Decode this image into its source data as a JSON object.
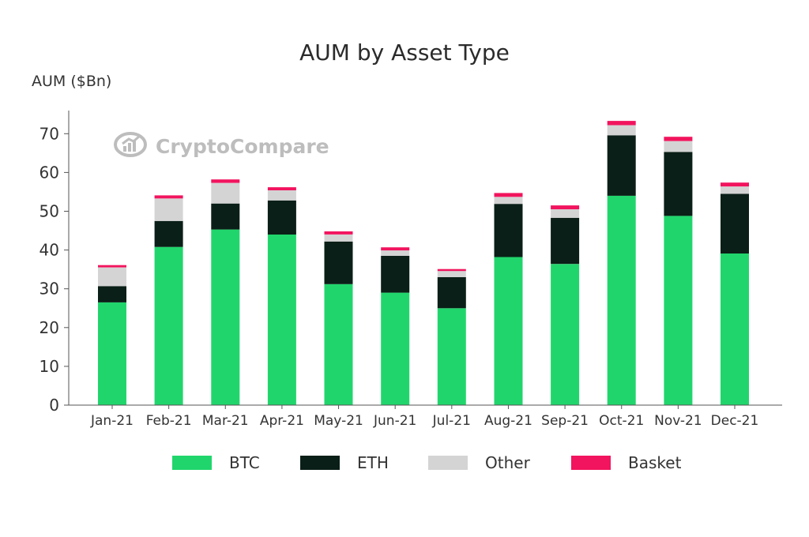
{
  "chart_data": {
    "type": "bar",
    "stacked": true,
    "title": "AUM by Asset Type",
    "ylabel": "AUM ($Bn)",
    "xlabel": "",
    "ylim": [
      0,
      75
    ],
    "yticks": [
      "0",
      "10",
      "20",
      "30",
      "40",
      "50",
      "60",
      "70"
    ],
    "categories": [
      "Jan-21",
      "Feb-21",
      "Mar-21",
      "Apr-21",
      "May-21",
      "Jun-21",
      "Jul-21",
      "Aug-21",
      "Sep-21",
      "Oct-21",
      "Nov-21",
      "Dec-21"
    ],
    "series": [
      {
        "name": "BTC",
        "color": "#20d66c",
        "values": [
          26.5,
          40.8,
          45.3,
          44.0,
          31.2,
          29.0,
          25.0,
          38.2,
          36.4,
          54.0,
          48.8,
          39.1
        ]
      },
      {
        "name": "ETH",
        "color": "#0a1f17",
        "values": [
          4.2,
          6.7,
          6.7,
          8.8,
          11.0,
          9.5,
          8.0,
          13.7,
          11.9,
          15.6,
          16.5,
          15.4
        ]
      },
      {
        "name": "Other",
        "color": "#d4d4d4",
        "values": [
          4.8,
          5.8,
          5.3,
          2.6,
          1.8,
          1.4,
          1.6,
          1.8,
          2.2,
          2.6,
          2.8,
          1.9
        ]
      },
      {
        "name": "Basket",
        "color": "#f2145e",
        "values": [
          0.6,
          0.8,
          0.9,
          0.8,
          0.8,
          0.8,
          0.5,
          1.0,
          1.0,
          1.1,
          1.1,
          1.0
        ]
      }
    ],
    "grid": false,
    "legend_position": "bottom"
  },
  "watermark": {
    "text": "CryptoCompare",
    "icon": "chart-logo-icon"
  }
}
